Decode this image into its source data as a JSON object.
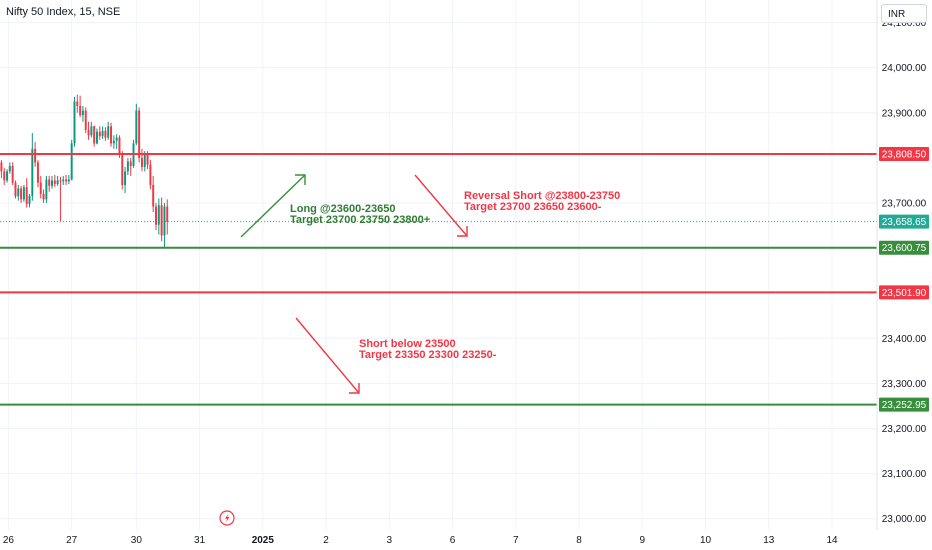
{
  "header": {
    "symbol": "Nifty 50 Index, 15, NSE"
  },
  "currency_button": "INR",
  "colors": {
    "red": "#f23645",
    "green": "#388e3c",
    "green_text": "#2e7d32",
    "teal": "#22ab94",
    "grid": "#f0f3fa",
    "axis_text": "#131722",
    "candle_up": "#089981",
    "candle_down": "#f23645"
  },
  "icons": {
    "event_marker": "lightning-bolt-icon"
  },
  "chart_data": {
    "type": "candlestick",
    "title": "",
    "ylim": [
      22975,
      24150
    ],
    "y_ticks": [
      23000,
      23100,
      23200,
      23300,
      23400,
      23700,
      23900,
      24000,
      24100
    ],
    "y_tick_labels": [
      "23,000.00",
      "23,100.00",
      "23,200.00",
      "23,300.00",
      "23,400.00",
      "23,700.00",
      "23,900.00",
      "24,000.00",
      "24,100.00"
    ],
    "x_ticks": [
      {
        "label": "26",
        "slot": 2.5
      },
      {
        "label": "27",
        "slot": 25
      },
      {
        "label": "30",
        "slot": 48
      },
      {
        "label": "31",
        "slot": 70.5
      },
      {
        "label": "2025",
        "slot": 93,
        "bold": true
      },
      {
        "label": "2",
        "slot": 115.5
      },
      {
        "label": "3",
        "slot": 138
      },
      {
        "label": "6",
        "slot": 160.5
      },
      {
        "label": "7",
        "slot": 183
      },
      {
        "label": "8",
        "slot": 205.5
      },
      {
        "label": "9",
        "slot": 228
      },
      {
        "label": "10",
        "slot": 250.5
      },
      {
        "label": "13",
        "slot": 273
      },
      {
        "label": "14",
        "slot": 295.5
      }
    ],
    "slots_total": 312,
    "current_price": {
      "value": 23658.65,
      "label": "23,658.65"
    },
    "levels": [
      {
        "value": 23808.5,
        "label": "23,808.50",
        "color": "red"
      },
      {
        "value": 23600.75,
        "label": "23,600.75",
        "color": "green"
      },
      {
        "value": 23501.9,
        "label": "23,501.90",
        "color": "red"
      },
      {
        "value": 23252.95,
        "label": "23,252.95",
        "color": "green"
      }
    ],
    "candles": [
      [
        23790,
        23795,
        23755,
        23770
      ],
      [
        23770,
        23778,
        23740,
        23750
      ],
      [
        23750,
        23775,
        23745,
        23770
      ],
      [
        23770,
        23790,
        23765,
        23782
      ],
      [
        23782,
        23790,
        23740,
        23745
      ],
      [
        23745,
        23750,
        23710,
        23715
      ],
      [
        23715,
        23740,
        23705,
        23732
      ],
      [
        23732,
        23738,
        23700,
        23708
      ],
      [
        23708,
        23740,
        23703,
        23735
      ],
      [
        23735,
        23755,
        23690,
        23698
      ],
      [
        23698,
        23720,
        23690,
        23715
      ],
      [
        23715,
        23855,
        23705,
        23820
      ],
      [
        23820,
        23835,
        23780,
        23790
      ],
      [
        23790,
        23795,
        23735,
        23745
      ],
      [
        23745,
        23760,
        23710,
        23720
      ],
      [
        23720,
        23730,
        23700,
        23708
      ],
      [
        23708,
        23760,
        23700,
        23752
      ],
      [
        23752,
        23760,
        23725,
        23738
      ],
      [
        23738,
        23760,
        23732,
        23750
      ],
      [
        23750,
        23762,
        23735,
        23742
      ],
      [
        23742,
        23760,
        23738,
        23750
      ],
      [
        23750,
        23758,
        23660,
        23748
      ],
      [
        23748,
        23760,
        23740,
        23752
      ],
      [
        23752,
        23762,
        23740,
        23748
      ],
      [
        23748,
        23762,
        23742,
        23752
      ],
      [
        23752,
        23840,
        23750,
        23832
      ],
      [
        23832,
        23935,
        23825,
        23925
      ],
      [
        23925,
        23940,
        23900,
        23915
      ],
      [
        23915,
        23938,
        23890,
        23895
      ],
      [
        23895,
        23915,
        23880,
        23905
      ],
      [
        23905,
        23912,
        23855,
        23862
      ],
      [
        23862,
        23880,
        23840,
        23850
      ],
      [
        23850,
        23880,
        23845,
        23870
      ],
      [
        23870,
        23872,
        23825,
        23832
      ],
      [
        23832,
        23865,
        23830,
        23858
      ],
      [
        23858,
        23870,
        23840,
        23848
      ],
      [
        23848,
        23870,
        23842,
        23860
      ],
      [
        23860,
        23868,
        23838,
        23845
      ],
      [
        23845,
        23880,
        23840,
        23870
      ],
      [
        23870,
        23878,
        23825,
        23832
      ],
      [
        23832,
        23850,
        23820,
        23838
      ],
      [
        23838,
        23852,
        23820,
        23845
      ],
      [
        23845,
        23850,
        23800,
        23810
      ],
      [
        23810,
        23815,
        23730,
        23740
      ],
      [
        23740,
        23780,
        23722,
        23770
      ],
      [
        23770,
        23800,
        23762,
        23792
      ],
      [
        23792,
        23800,
        23760,
        23782
      ],
      [
        23782,
        23840,
        23778,
        23832
      ],
      [
        23832,
        23920,
        23828,
        23905
      ],
      [
        23905,
        23912,
        23790,
        23800
      ],
      [
        23800,
        23820,
        23770,
        23780
      ],
      [
        23780,
        23815,
        23770,
        23808
      ],
      [
        23808,
        23815,
        23775,
        23785
      ],
      [
        23785,
        23795,
        23730,
        23740
      ],
      [
        23740,
        23760,
        23680,
        23692
      ],
      [
        23692,
        23700,
        23640,
        23652
      ],
      [
        23652,
        23710,
        23630,
        23695
      ],
      [
        23695,
        23712,
        23615,
        23628
      ],
      [
        23628,
        23700,
        23602,
        23692
      ],
      [
        23692,
        23708,
        23630,
        23658
      ]
    ],
    "annotations": [
      {
        "lines": [
          "Long @23600-23650",
          "Target 23700 23750 23800+"
        ],
        "color": "green_text"
      },
      {
        "lines": [
          "Reversal Short @23800-23750",
          "Target 23700 23650 23600-"
        ],
        "color": "red"
      },
      {
        "lines": [
          "Short below 23500",
          "Target 23350 23300 23250-"
        ],
        "color": "red"
      }
    ]
  }
}
